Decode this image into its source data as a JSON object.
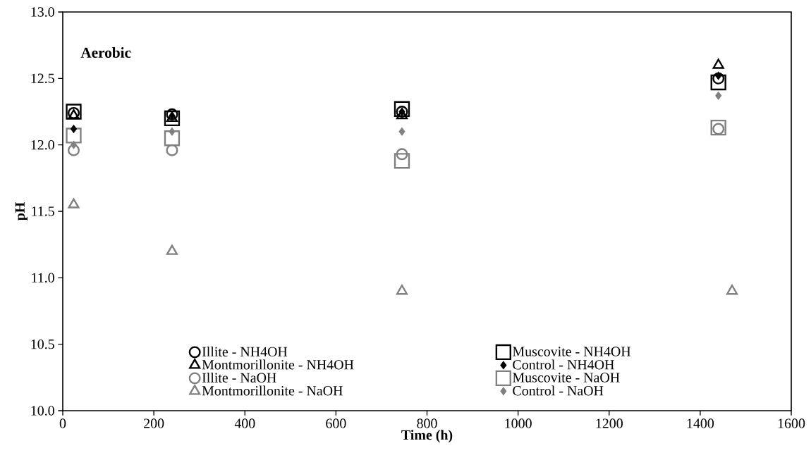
{
  "chart_data": {
    "type": "scatter",
    "xlabel": "Time (h)",
    "ylabel": "pH",
    "annotations": [
      "Aerobic"
    ],
    "xlim": [
      0,
      1600
    ],
    "xticks": [
      0,
      200,
      400,
      600,
      800,
      1000,
      1200,
      1400,
      1600
    ],
    "ylim": [
      10,
      13
    ],
    "yticks": [
      {
        "value": 10,
        "label": "10.0"
      },
      {
        "value": 10.5,
        "label": "10.5"
      },
      {
        "value": 11,
        "label": "11.0"
      },
      {
        "value": 11.5,
        "label": "11.5"
      },
      {
        "value": 12,
        "label": "12.0"
      },
      {
        "value": 12.5,
        "label": "12.5"
      },
      {
        "value": 13,
        "label": "13.0"
      }
    ],
    "grid": false,
    "legend": "bottom",
    "series": [
      {
        "name": "Illite - NH4OH",
        "color": "#000000",
        "marker": "circle",
        "x": [
          24,
          240,
          745,
          1440
        ],
        "values": [
          12.24,
          12.23,
          12.25,
          12.5
        ]
      },
      {
        "name": "Muscovite - NH4OH",
        "color": "#000000",
        "marker": "square",
        "x": [
          24,
          240,
          745,
          1440
        ],
        "values": [
          12.25,
          12.2,
          12.27,
          12.47
        ]
      },
      {
        "name": "Montmorillonite - NH4OH",
        "color": "#000000",
        "marker": "triangle",
        "x": [
          24,
          240,
          745,
          1440
        ],
        "values": [
          12.22,
          12.2,
          12.22,
          12.6
        ]
      },
      {
        "name": "Control  - NH4OH",
        "color": "#000000",
        "marker": "diamond",
        "x": [
          24,
          240,
          745,
          1440
        ],
        "values": [
          12.12,
          12.22,
          12.25,
          12.52
        ]
      },
      {
        "name": "Illite - NaOH",
        "color": "#808080",
        "marker": "circle",
        "x": [
          24,
          240,
          745,
          1440
        ],
        "values": [
          11.96,
          11.96,
          11.93,
          12.12
        ]
      },
      {
        "name": "Muscovite -  NaOH",
        "color": "#808080",
        "marker": "square",
        "x": [
          24,
          240,
          745,
          1440
        ],
        "values": [
          12.07,
          12.05,
          11.88,
          12.13
        ]
      },
      {
        "name": "Montmorillonite - NaOH",
        "color": "#808080",
        "marker": "triangle",
        "x": [
          24,
          240,
          745,
          1470
        ],
        "values": [
          11.55,
          11.2,
          10.9,
          10.9
        ]
      },
      {
        "name": "Control - NaOH",
        "color": "#808080",
        "marker": "diamond",
        "x": [
          24,
          240,
          745,
          1440
        ],
        "values": [
          12.0,
          12.1,
          12.1,
          12.37
        ]
      }
    ]
  }
}
